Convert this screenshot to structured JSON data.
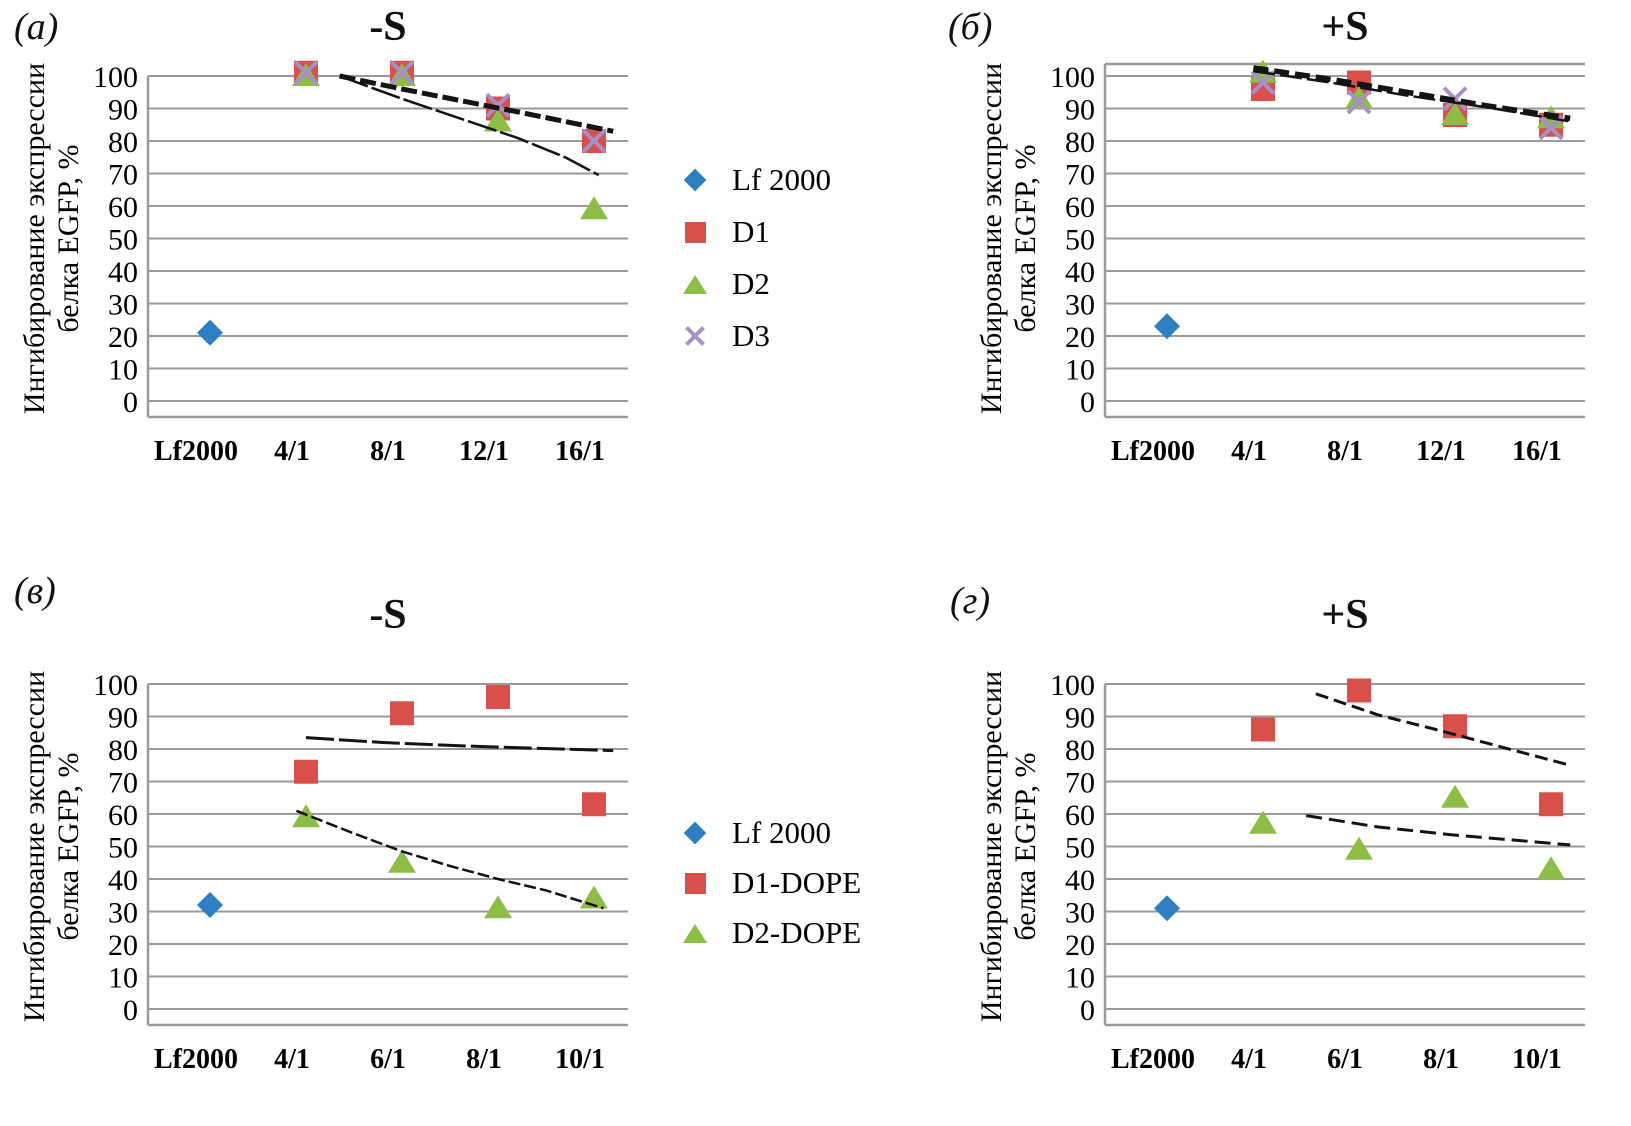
{
  "figure": {
    "background": "#ffffff",
    "grid_color": "#9a9a9a",
    "axis_color": "#9a9a9a",
    "trend_color": "#141414",
    "text_color": "#000000"
  },
  "series_palette": {
    "lf2000": "#2e7fc2",
    "d1": "#d9504a",
    "d2": "#8cbd44",
    "d3": "#a78fc9"
  },
  "chart_data": [
    {
      "id": "a",
      "panel_label": "(a)",
      "title": "-S",
      "type": "scatter",
      "ylabel_lines": [
        "Ингибирование экспрессии",
        "белка EGFP, %"
      ],
      "ylim": [
        0,
        100
      ],
      "yticks": [
        0,
        10,
        20,
        30,
        40,
        50,
        60,
        70,
        80,
        90,
        100
      ],
      "grid": "horizontal",
      "has_top_border": false,
      "categories": [
        "Lf2000",
        "4/1",
        "8/1",
        "12/1",
        "16/1"
      ],
      "series": [
        {
          "name": "Lf 2000",
          "marker": "diamond",
          "color_key": "lf2000",
          "values": [
            21,
            null,
            null,
            null,
            null
          ]
        },
        {
          "name": "D1",
          "marker": "square",
          "color_key": "d1",
          "values": [
            null,
            101,
            101,
            90,
            80
          ]
        },
        {
          "name": "D2",
          "marker": "triangle",
          "color_key": "d2",
          "values": [
            null,
            100,
            100,
            86,
            59
          ]
        },
        {
          "name": "D3",
          "marker": "x",
          "color_key": "d3",
          "values": [
            null,
            101,
            101,
            91,
            80
          ]
        }
      ],
      "trendlines": [
        {
          "points": [
            [
              1.35,
              100
            ],
            [
              2.0,
              96
            ],
            [
              2.6,
              92.5
            ],
            [
              3.2,
              89
            ],
            [
              3.7,
              86
            ],
            [
              4.2,
              83
            ]
          ],
          "width": 5,
          "dash": "16 5"
        },
        {
          "points": [
            [
              1.35,
              100
            ],
            [
              2.0,
              93
            ],
            [
              2.6,
              87
            ],
            [
              3.2,
              81
            ],
            [
              3.7,
              75
            ],
            [
              4.05,
              69.5
            ]
          ],
          "width": 2.5,
          "dash": "30 4"
        }
      ],
      "legend_position": "right",
      "legend": {
        "items": [
          {
            "label": "Lf 2000",
            "marker": "diamond",
            "color_key": "lf2000"
          },
          {
            "label": "D1",
            "marker": "square",
            "color_key": "d1"
          },
          {
            "label": "D2",
            "marker": "triangle",
            "color_key": "d2"
          },
          {
            "label": "D3",
            "marker": "x",
            "color_key": "d3"
          }
        ]
      }
    },
    {
      "id": "b",
      "panel_label": "(б)",
      "title": "+S",
      "type": "scatter",
      "ylabel_lines": [
        "Ингибирование экспрессии",
        "белка EGFP, %"
      ],
      "ylim": [
        0,
        100
      ],
      "yticks": [
        0,
        10,
        20,
        30,
        40,
        50,
        60,
        70,
        80,
        90,
        100
      ],
      "grid": "horizontal",
      "has_top_border": true,
      "categories": [
        "Lf2000",
        "4/1",
        "8/1",
        "12/1",
        "16/1"
      ],
      "series": [
        {
          "name": "Lf 2000",
          "marker": "diamond",
          "color_key": "lf2000",
          "values": [
            23,
            null,
            null,
            null,
            null
          ]
        },
        {
          "name": "D1",
          "marker": "square",
          "color_key": "d1",
          "values": [
            null,
            96,
            98,
            88,
            85
          ]
        },
        {
          "name": "D2",
          "marker": "triangle",
          "color_key": "d2",
          "values": [
            null,
            101,
            93,
            88,
            87
          ]
        },
        {
          "name": "D3",
          "marker": "x",
          "color_key": "d3",
          "values": [
            null,
            98,
            92,
            93,
            84
          ]
        }
      ],
      "trendlines": [
        {
          "points": [
            [
              0.9,
              102.5
            ],
            [
              1.7,
              99
            ],
            [
              2.5,
              95
            ],
            [
              3.3,
              91
            ],
            [
              4.2,
              87
            ]
          ],
          "width": 5.5,
          "dash": "15 6"
        },
        {
          "points": [
            [
              0.9,
              101.5
            ],
            [
              1.7,
              98
            ],
            [
              2.5,
              94
            ],
            [
              3.3,
              90.5
            ],
            [
              4.2,
              86
            ]
          ],
          "width": 2.5,
          "dash": "22 5"
        }
      ],
      "legend_position": "none",
      "legend": null
    },
    {
      "id": "v",
      "panel_label": "(в)",
      "title": "-S",
      "type": "scatter",
      "ylabel_lines": [
        "Ингибирование экспрессии",
        "белка EGFP, %"
      ],
      "ylim": [
        0,
        100
      ],
      "yticks": [
        0,
        10,
        20,
        30,
        40,
        50,
        60,
        70,
        80,
        90,
        100
      ],
      "grid": "horizontal",
      "has_top_border": false,
      "categories": [
        "Lf2000",
        "4/1",
        "6/1",
        "8/1",
        "10/1"
      ],
      "series": [
        {
          "name": "Lf 2000",
          "marker": "diamond",
          "color_key": "lf2000",
          "values": [
            32,
            null,
            null,
            null,
            null
          ]
        },
        {
          "name": "D1-DOPE",
          "marker": "square",
          "color_key": "d1",
          "values": [
            null,
            73,
            91,
            96,
            63
          ]
        },
        {
          "name": "D2-DOPE",
          "marker": "triangle",
          "color_key": "d2",
          "values": [
            null,
            59,
            45,
            31,
            34
          ]
        }
      ],
      "trendlines": [
        {
          "points": [
            [
              1.0,
              83.5
            ],
            [
              1.8,
              82
            ],
            [
              2.6,
              81
            ],
            [
              3.4,
              80.2
            ],
            [
              4.2,
              79.5
            ]
          ],
          "width": 3,
          "dash": "28 5"
        },
        {
          "points": [
            [
              0.9,
              61
            ],
            [
              1.5,
              54
            ],
            [
              2.0,
              48.5
            ],
            [
              2.5,
              44
            ],
            [
              3.0,
              40
            ],
            [
              3.5,
              36.5
            ],
            [
              4.1,
              31
            ]
          ],
          "width": 2.5,
          "dash": "12 4"
        }
      ],
      "legend_position": "right",
      "legend": {
        "items": [
          {
            "label": "Lf 2000",
            "marker": "diamond",
            "color_key": "lf2000"
          },
          {
            "label": "D1-DOPE",
            "marker": "square",
            "color_key": "d1"
          },
          {
            "label": "D2-DOPE",
            "marker": "triangle",
            "color_key": "d2"
          }
        ]
      }
    },
    {
      "id": "g",
      "panel_label": "(г)",
      "title": "+S",
      "type": "scatter",
      "ylabel_lines": [
        "Ингибирование экспрессии",
        "белка EGFP, %"
      ],
      "ylim": [
        0,
        100
      ],
      "yticks": [
        0,
        10,
        20,
        30,
        40,
        50,
        60,
        70,
        80,
        90,
        100
      ],
      "grid": "horizontal",
      "has_top_border": false,
      "categories": [
        "Lf2000",
        "4/1",
        "6/1",
        "8/1",
        "10/1"
      ],
      "series": [
        {
          "name": "Lf 2000",
          "marker": "diamond",
          "color_key": "lf2000",
          "values": [
            31,
            null,
            null,
            null,
            null
          ]
        },
        {
          "name": "D1-DOPE",
          "marker": "square",
          "color_key": "d1",
          "values": [
            null,
            86,
            98,
            87,
            63
          ]
        },
        {
          "name": "D2-DOPE",
          "marker": "triangle",
          "color_key": "d2",
          "values": [
            null,
            57,
            49,
            65,
            43
          ]
        }
      ],
      "trendlines": [
        {
          "points": [
            [
              1.55,
              97
            ],
            [
              2.2,
              90.5
            ],
            [
              2.8,
              86
            ],
            [
              3.5,
              80.5
            ],
            [
              4.2,
              75
            ]
          ],
          "width": 3,
          "dash": "13 6"
        },
        {
          "points": [
            [
              1.45,
              59.5
            ],
            [
              2.2,
              56
            ],
            [
              3.0,
              53.5
            ],
            [
              4.2,
              50.5
            ]
          ],
          "width": 3,
          "dash": "16 7"
        }
      ],
      "legend_position": "none",
      "legend": null
    }
  ]
}
